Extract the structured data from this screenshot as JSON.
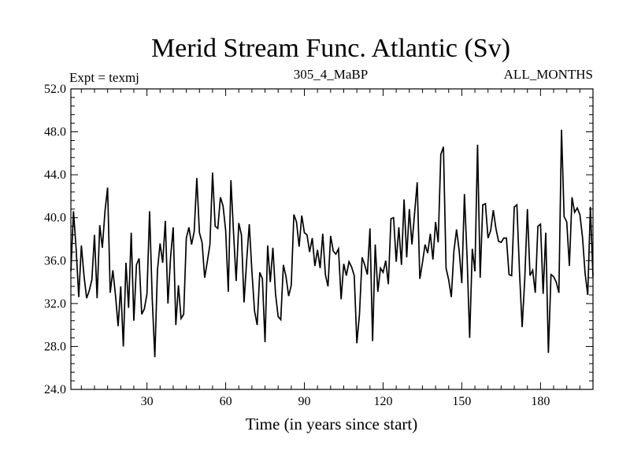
{
  "chart_data": {
    "type": "line",
    "title": "Merid Stream Func. Atlantic (Sv)",
    "subtitle_left": "Expt = texmj",
    "subtitle_center": "305_4_MaBP",
    "subtitle_right": "ALL_MONTHS",
    "xlabel": "Time (in years since start)",
    "ylabel": "",
    "xlim": [
      1,
      200
    ],
    "ylim": [
      24.0,
      52.0
    ],
    "xticks": [
      30,
      60,
      90,
      120,
      150,
      180
    ],
    "yticks": [
      24.0,
      28.0,
      32.0,
      36.0,
      40.0,
      44.0,
      48.0,
      52.0
    ],
    "ytick_labels": [
      "24.0",
      "28.0",
      "32.0",
      "36.0",
      "40.0",
      "44.0",
      "48.0",
      "52.0"
    ],
    "grid": false,
    "series": [
      {
        "name": "Merid Stream Func. Atlantic",
        "x_start": 1,
        "x_step": 1,
        "values": [
          35.0,
          40.6,
          37.1,
          32.6,
          37.4,
          34.6,
          32.5,
          33.2,
          34.2,
          38.4,
          32.5,
          39.3,
          37.2,
          40.6,
          42.8,
          33.0,
          35.1,
          32.8,
          29.9,
          33.6,
          28.0,
          35.8,
          31.6,
          38.6,
          30.4,
          35.6,
          36.2,
          31.0,
          31.5,
          32.9,
          40.6,
          32.5,
          27.0,
          35.1,
          37.6,
          35.8,
          39.7,
          32.0,
          36.3,
          39.1,
          30.0,
          33.7,
          30.6,
          31.0,
          38.1,
          39.1,
          37.5,
          38.7,
          43.7,
          38.6,
          37.7,
          34.4,
          35.9,
          37.5,
          44.2,
          39.2,
          39.0,
          41.9,
          41.1,
          38.8,
          33.1,
          43.5,
          38.6,
          34.1,
          39.5,
          38.4,
          32.1,
          36.0,
          39.4,
          35.0,
          31.3,
          30.0,
          34.9,
          34.3,
          28.4,
          37.4,
          34.0,
          37.2,
          32.9,
          30.8,
          30.5,
          35.6,
          34.5,
          32.7,
          33.7,
          40.3,
          39.6,
          37.3,
          40.2,
          38.6,
          38.4,
          36.8,
          38.1,
          35.5,
          37.0,
          35.3,
          38.5,
          34.7,
          33.6,
          38.3,
          36.9,
          36.6,
          37.1,
          32.4,
          35.7,
          34.6,
          35.9,
          35.4,
          34.6,
          28.3,
          31.0,
          36.3,
          35.6,
          34.7,
          39.0,
          28.5,
          37.5,
          33.1,
          35.3,
          34.9,
          36.0,
          33.8,
          39.9,
          40.0,
          35.9,
          39.1,
          35.6,
          41.7,
          36.3,
          40.8,
          37.5,
          40.4,
          43.3,
          34.3,
          35.8,
          37.5,
          36.7,
          38.5,
          36.1,
          39.6,
          37.7,
          45.9,
          46.6,
          35.3,
          34.2,
          32.6,
          36.9,
          38.9,
          36.9,
          33.9,
          42.2,
          36.4,
          28.8,
          37.1,
          35.0,
          46.8,
          34.4,
          41.2,
          41.3,
          38.1,
          38.8,
          40.7,
          39.0,
          37.8,
          37.7,
          38.1,
          38.1,
          34.7,
          34.6,
          41.0,
          41.2,
          34.9,
          29.8,
          34.3,
          40.8,
          34.6,
          35.1,
          33.0,
          39.2,
          39.4,
          32.9,
          38.6,
          27.4,
          34.7,
          34.5,
          34.0,
          33.0,
          48.2,
          40.1,
          39.6,
          35.5,
          41.9,
          40.5,
          40.9,
          40.3,
          38.2,
          34.8,
          32.8,
          41.0,
          34.5
        ]
      }
    ]
  }
}
